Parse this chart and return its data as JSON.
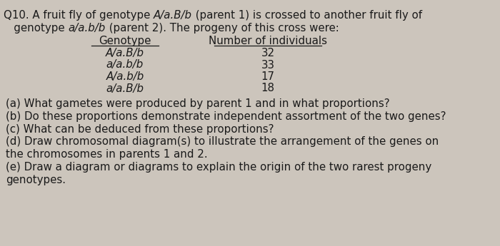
{
  "bg_color": "#ccc5bc",
  "text_color": "#1a1a1a",
  "col1_header": "Genotype",
  "col2_header": "Number of individuals",
  "rows": [
    [
      "A/a.B/b",
      "32"
    ],
    [
      "a/a.b/b",
      "33"
    ],
    [
      "A/a.b/b",
      "17"
    ],
    [
      "a/a.B/b",
      "18"
    ]
  ],
  "questions": [
    "(a) What gametes were produced by parent 1 and in what proportions?",
    "(b) Do these proportions demonstrate independent assortment of the two genes?",
    "(c) What can be deduced from these proportions?",
    "(d) Draw chromosomal diagram(s) to illustrate the arrangement of the genes on",
    "the chromosomes in parents 1 and 2.",
    "(e) Draw a diagram or diagrams to explain the origin of the two rarest progeny",
    "genotypes."
  ],
  "fs": 10.8
}
